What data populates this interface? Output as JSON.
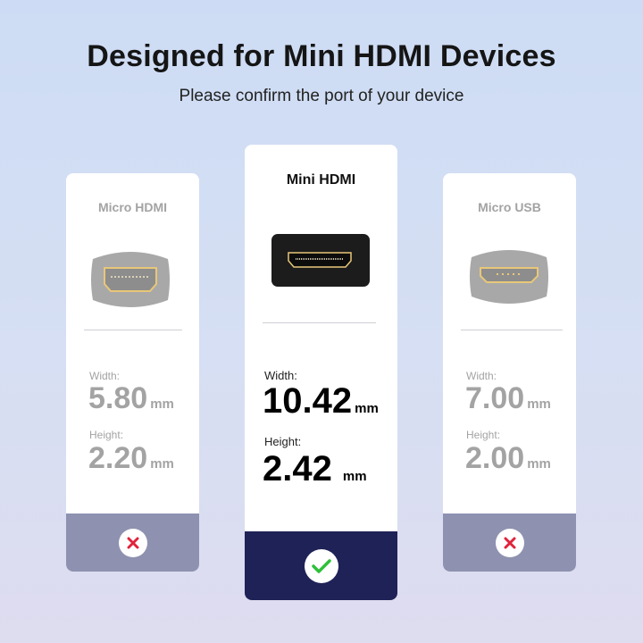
{
  "header": {
    "title": "Designed for Mini HDMI Devices",
    "subtitle": "Please confirm the port of your device"
  },
  "cards": [
    {
      "name": "Micro HDMI",
      "width_label": "Width:",
      "width": "5.80",
      "height_label": "Height:",
      "height": "2.20",
      "unit": "mm",
      "compatible": false,
      "icon": "cross-icon"
    },
    {
      "name": "Mini HDMI",
      "width_label": "Width:",
      "width": "10.42",
      "height_label": "Height:",
      "height": "2.42",
      "unit": "mm",
      "compatible": true,
      "icon": "check-icon"
    },
    {
      "name": "Micro USB",
      "width_label": "Width:",
      "width": "7.00",
      "height_label": "Height:",
      "height": "2.00",
      "unit": "mm",
      "compatible": false,
      "icon": "cross-icon"
    }
  ],
  "colors": {
    "selected_band": "#1e2257",
    "unselected_band": "#8e92b0",
    "check": "#2fbf3a",
    "cross": "#e0233c",
    "port_gold": "#e8c77a"
  }
}
